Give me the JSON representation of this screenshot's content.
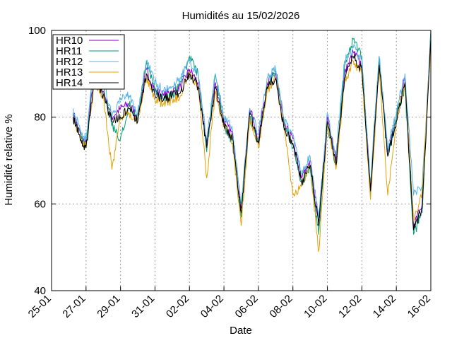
{
  "chart_data": {
    "type": "line",
    "title": "Humidités au 15/02/2026",
    "xlabel": "Date",
    "ylabel": "Humidité relative %",
    "ylim": [
      40,
      100
    ],
    "xlim": [
      "2026-01-25",
      "2026-02-16"
    ],
    "x_ticks": [
      "25-01",
      "27-01",
      "29-01",
      "31-01",
      "02-02",
      "04-02",
      "06-02",
      "08-02",
      "10-02",
      "12-02",
      "14-02",
      "16-02"
    ],
    "y_ticks": [
      40,
      60,
      80,
      100
    ],
    "grid": true,
    "legend_position": "top-left",
    "x": [
      "2026-01-26 06:00",
      "2026-01-26 18:00",
      "2026-01-27 00:00",
      "2026-01-27 12:00",
      "2026-01-28 00:00",
      "2026-01-28 12:00",
      "2026-01-29 00:00",
      "2026-01-29 12:00",
      "2026-01-30 00:00",
      "2026-01-30 12:00",
      "2026-01-31 00:00",
      "2026-01-31 12:00",
      "2026-02-01 00:00",
      "2026-02-01 12:00",
      "2026-02-02 00:00",
      "2026-02-02 12:00",
      "2026-02-03 00:00",
      "2026-02-03 12:00",
      "2026-02-04 00:00",
      "2026-02-04 12:00",
      "2026-02-05 00:00",
      "2026-02-05 12:00",
      "2026-02-06 00:00",
      "2026-02-06 12:00",
      "2026-02-07 00:00",
      "2026-02-07 12:00",
      "2026-02-08 00:00",
      "2026-02-08 12:00",
      "2026-02-09 00:00",
      "2026-02-09 12:00",
      "2026-02-10 00:00",
      "2026-02-10 12:00",
      "2026-02-11 00:00",
      "2026-02-11 12:00",
      "2026-02-12 00:00",
      "2026-02-12 12:00",
      "2026-02-13 00:00",
      "2026-02-13 12:00",
      "2026-02-14 00:00",
      "2026-02-14 12:00",
      "2026-02-15 00:00",
      "2026-02-15 12:00",
      "2026-02-16 00:00"
    ],
    "series": [
      {
        "name": "HR10",
        "color": "#9400d3",
        "values": [
          81,
          75,
          74,
          90,
          86,
          80,
          82,
          83,
          80,
          91,
          86,
          85,
          86,
          87,
          91,
          88,
          74,
          88,
          79,
          76,
          59,
          82,
          75,
          88,
          90,
          78,
          75,
          66,
          70,
          56,
          80,
          70,
          90,
          95,
          92,
          64,
          93,
          72,
          80,
          89,
          55,
          60,
          98
        ]
      },
      {
        "name": "HR11",
        "color": "#009e73",
        "values": [
          81,
          75,
          73,
          95,
          87,
          78,
          75,
          83,
          80,
          93,
          86,
          84,
          85,
          88,
          94,
          90,
          72,
          90,
          78,
          74,
          57,
          80,
          74,
          87,
          91,
          79,
          73,
          65,
          68,
          53,
          78,
          69,
          92,
          98,
          94,
          62,
          94,
          71,
          80,
          87,
          53,
          58,
          100
        ]
      },
      {
        "name": "HR12",
        "color": "#56b4e9",
        "values": [
          82,
          76,
          75,
          93,
          88,
          80,
          84,
          85,
          81,
          93,
          88,
          86,
          87,
          89,
          93,
          90,
          75,
          90,
          80,
          77,
          60,
          82,
          76,
          89,
          91,
          79,
          76,
          67,
          71,
          57,
          81,
          71,
          93,
          96,
          93,
          65,
          94,
          73,
          81,
          90,
          62,
          64,
          99
        ]
      },
      {
        "name": "HR13",
        "color": "#e69f00",
        "values": [
          80,
          74,
          73,
          88,
          85,
          68,
          80,
          81,
          79,
          89,
          84,
          83,
          84,
          85,
          90,
          87,
          66,
          86,
          78,
          74,
          55,
          80,
          73,
          86,
          89,
          77,
          62,
          64,
          69,
          49,
          79,
          68,
          88,
          93,
          90,
          61,
          91,
          62,
          79,
          88,
          56,
          63,
          97
        ]
      },
      {
        "name": "HR14",
        "color": "#000000",
        "values": [
          80,
          74,
          73,
          89,
          85,
          79,
          80,
          82,
          79,
          90,
          85,
          84,
          85,
          86,
          90,
          87,
          73,
          87,
          78,
          75,
          58,
          81,
          74,
          87,
          89,
          77,
          74,
          65,
          69,
          55,
          79,
          69,
          89,
          94,
          91,
          63,
          92,
          71,
          79,
          88,
          54,
          59,
          98
        ]
      }
    ]
  }
}
